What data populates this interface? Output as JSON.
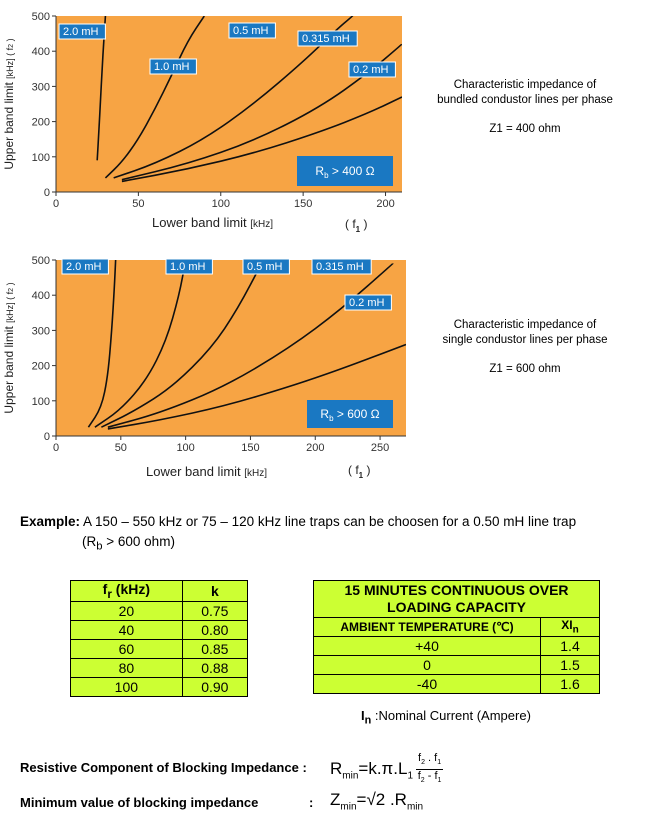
{
  "chart_data": [
    {
      "type": "line",
      "xlabel": "Lower band limit",
      "xlabel_unit": "[kHz]",
      "xlabel_symbol": "f",
      "xlabel_symbol_sub": "1",
      "ylabel": "Upper band limit",
      "ylabel_unit": "[kHz]",
      "ylabel_symbol": "f",
      "ylabel_symbol_sub": "2",
      "xlim": [
        0,
        210
      ],
      "ylim": [
        0,
        500
      ],
      "xticks": [
        "0",
        "50",
        "100",
        "150",
        "200"
      ],
      "yticks": [
        "0",
        "100",
        "200",
        "300",
        "400",
        "500"
      ],
      "background": "#f7a444",
      "line_color": "#111111",
      "label_color": "#1a78c2",
      "rb_label": {
        "text": "R",
        "sub": "b",
        "rest": " > 400 Ω"
      },
      "series": [
        {
          "name": "2.0 mH",
          "x": [
            25,
            26,
            27,
            28,
            29,
            30
          ],
          "y": [
            90,
            170,
            260,
            350,
            430,
            500
          ]
        },
        {
          "name": "1.0 mH",
          "x": [
            30,
            40,
            50,
            60,
            70,
            80,
            90
          ],
          "y": [
            40,
            85,
            150,
            235,
            330,
            430,
            500
          ]
        },
        {
          "name": "0.5 mH",
          "x": [
            35,
            60,
            90,
            120,
            150,
            170,
            180
          ],
          "y": [
            40,
            80,
            150,
            250,
            370,
            460,
            500
          ]
        },
        {
          "name": "0.315 mH",
          "x": [
            40,
            80,
            120,
            160,
            190,
            210
          ],
          "y": [
            35,
            80,
            145,
            240,
            340,
            420
          ]
        },
        {
          "name": "0.2 mH",
          "x": [
            40,
            80,
            120,
            160,
            190,
            210
          ],
          "y": [
            30,
            65,
            110,
            170,
            225,
            270
          ]
        }
      ]
    },
    {
      "type": "line",
      "xlabel": "Lower band limit",
      "xlabel_unit": "[kHz]",
      "xlabel_symbol": "f",
      "xlabel_symbol_sub": "1",
      "ylabel": "Upper band limit",
      "ylabel_unit": "[kHz]",
      "ylabel_symbol": "f",
      "ylabel_symbol_sub": "2",
      "xlim": [
        0,
        270
      ],
      "ylim": [
        0,
        500
      ],
      "xticks": [
        "0",
        "50",
        "100",
        "150",
        "200",
        "250"
      ],
      "yticks": [
        "0",
        "100",
        "200",
        "300",
        "400",
        "500"
      ],
      "background": "#f7a444",
      "line_color": "#111111",
      "label_color": "#1a78c2",
      "rb_label": {
        "text": "R",
        "sub": "b",
        "rest": " > 600 Ω"
      },
      "series": [
        {
          "name": "2.0 mH",
          "x": [
            25,
            35,
            40,
            43,
            45,
            46
          ],
          "y": [
            25,
            80,
            170,
            300,
            420,
            500
          ]
        },
        {
          "name": "1.0 mH",
          "x": [
            30,
            50,
            70,
            85,
            95,
            100
          ],
          "y": [
            25,
            75,
            160,
            270,
            400,
            500
          ]
        },
        {
          "name": "0.5 mH",
          "x": [
            35,
            60,
            90,
            120,
            140,
            160
          ],
          "y": [
            25,
            70,
            140,
            250,
            360,
            500
          ]
        },
        {
          "name": "0.315 mH",
          "x": [
            40,
            80,
            130,
            180,
            220,
            260
          ],
          "y": [
            25,
            65,
            140,
            250,
            360,
            490
          ]
        },
        {
          "name": "0.2 mH",
          "x": [
            40,
            80,
            130,
            180,
            220,
            270
          ],
          "y": [
            20,
            45,
            85,
            140,
            190,
            260
          ]
        }
      ]
    }
  ],
  "notes": [
    {
      "line1": "Characteristic impedance of",
      "line2": "bundled condustor lines per phase",
      "z": "Z1 = 400 ohm"
    },
    {
      "line1": "Characteristic impedance of",
      "line2": "single condustor lines per phase",
      "z": "Z1 = 600 ohm"
    }
  ],
  "example": {
    "label": "Example:",
    "text": " A 150 – 550 kHz or 75 – 120 kHz line traps can be choosen for a  0.50 mH line trap",
    "line2_pre": "(R",
    "line2_sub": "b",
    "line2_post": " > 600 ohm)"
  },
  "k_table": {
    "col1_pre": "f",
    "col1_sub": "r",
    "col1_post": " (kHz)",
    "col2": "k",
    "rows": [
      [
        "20",
        "0.75"
      ],
      [
        "40",
        "0.80"
      ],
      [
        "60",
        "0.85"
      ],
      [
        "80",
        "0.88"
      ],
      [
        "100",
        "0.90"
      ]
    ]
  },
  "overload_table": {
    "title": "15 MINUTES CONTINUOUS OVER LOADING CAPACITY",
    "col1": "AMBIENT TEMPERATURE (℃)",
    "col2_pre": "XI",
    "col2_sub": "n",
    "rows": [
      [
        "+40",
        "1.4"
      ],
      [
        "0",
        "1.5"
      ],
      [
        "-40",
        "1.6"
      ]
    ]
  },
  "nominal": {
    "sym": "I",
    "sub": "n",
    "text": " :Nominal Current (Ampere)"
  },
  "formulas": {
    "resistive_label": "Resistive Component of Blocking Impedance :",
    "minimum_label": "Minimum value of blocking impedance",
    "colon": ":",
    "r_lhs": "R",
    "r_lhs_sub": "min",
    "r_mid": "=k.π.L",
    "r_mid_sub": "1",
    "frac_num": "f",
    "frac_num_sub1": "2",
    "frac_num_dot": " . f",
    "frac_num_sub2": "1",
    "frac_den": "f",
    "frac_den_sub1": "2",
    "frac_den_dash": " - f",
    "frac_den_sub2": "1",
    "z_lhs": "Z",
    "z_lhs_sub": "min",
    "z_mid": "=√2 .R",
    "z_mid_sub": "min"
  }
}
